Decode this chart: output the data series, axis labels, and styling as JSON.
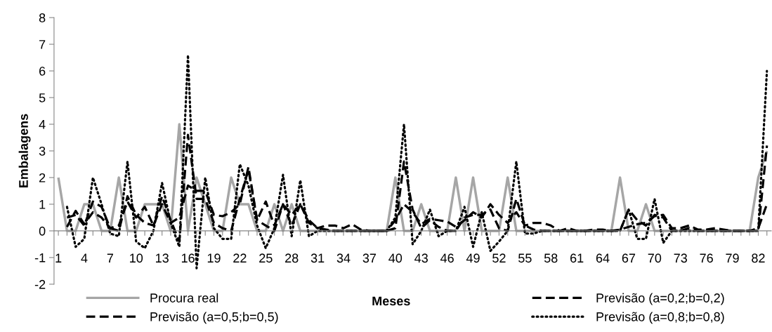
{
  "chart_data": {
    "type": "line",
    "xlabel": "Meses",
    "ylabel": "Embalagens",
    "categories": [
      "1",
      null,
      null,
      "4",
      null,
      null,
      "7",
      null,
      null,
      "10",
      null,
      null,
      "13",
      null,
      null,
      "16",
      null,
      null,
      "19",
      null,
      null,
      "22",
      null,
      null,
      "25",
      null,
      null,
      "28",
      null,
      null,
      "31",
      null,
      null,
      "34",
      null,
      null,
      "37",
      null,
      null,
      "40",
      null,
      null,
      "43",
      null,
      null,
      "46",
      null,
      null,
      "49",
      null,
      null,
      "52",
      null,
      null,
      "55",
      null,
      null,
      "58",
      null,
      null,
      "61",
      null,
      null,
      "64",
      null,
      null,
      "67",
      null,
      null,
      "70",
      null,
      null,
      "73",
      null,
      null,
      "76",
      null,
      null,
      "79",
      null,
      null,
      "82",
      null
    ],
    "ylim": [
      -2,
      8
    ],
    "yticks": [
      -2,
      -1,
      0,
      1,
      2,
      3,
      4,
      5,
      6,
      7,
      8
    ],
    "legend": "bottom",
    "grid": false,
    "series": [
      {
        "name": "Procura real",
        "color": "#a6a6a6",
        "line_style": "solid",
        "values": [
          2,
          0,
          0,
          1,
          1,
          0,
          0,
          2,
          0,
          0,
          1,
          1,
          1,
          0,
          4,
          0,
          2,
          1,
          0,
          0,
          2,
          1,
          1,
          0,
          0,
          1,
          0,
          1,
          0,
          0,
          0,
          0,
          0,
          0,
          0,
          0,
          0,
          0,
          0,
          2,
          0,
          0,
          1,
          0,
          0,
          0,
          2,
          0,
          2,
          0,
          0,
          0,
          2,
          0,
          0,
          0,
          0,
          0,
          0,
          0,
          0,
          0,
          0,
          0,
          0,
          2,
          0,
          0,
          1,
          0,
          0,
          0,
          0,
          0,
          0,
          0,
          0,
          0,
          0,
          0,
          0,
          2,
          3
        ]
      },
      {
        "name": "Previsão (a=0,2;b=0,2)",
        "color": "#000000",
        "line_style": "dashed",
        "values": [
          null,
          0.15,
          0.75,
          0.25,
          0.7,
          0.5,
          0.1,
          0.2,
          1.1,
          0.5,
          0.9,
          0.2,
          1.0,
          0.3,
          0.5,
          1.7,
          1.5,
          1.5,
          0.6,
          0.55,
          0.7,
          1.0,
          2.4,
          0.4,
          1.1,
          0.2,
          1.0,
          0.6,
          1.0,
          0.3,
          0.1,
          0.2,
          0.2,
          0.1,
          0.25,
          0.05,
          0,
          0,
          0,
          0.4,
          1.0,
          0.7,
          0.25,
          0.45,
          0.4,
          0.35,
          0.15,
          0.4,
          0.7,
          0.5,
          1.0,
          0.6,
          0.3,
          0.7,
          0.2,
          0.3,
          0.3,
          0.2,
          0,
          0.1,
          0,
          0,
          0.05,
          0.05,
          0,
          0.05,
          0.15,
          0.25,
          0.3,
          0.55,
          0.6,
          0.1,
          0.1,
          0.2,
          0.05,
          0.05,
          0.1,
          0.05,
          0,
          0,
          0,
          0.1,
          1.0
        ]
      },
      {
        "name": "Previsão (a=0,5;b=0,5)",
        "color": "#000000",
        "line_style": "dashed",
        "values": [
          null,
          0.5,
          0.6,
          0.2,
          1.1,
          0.9,
          0.1,
          0,
          1.3,
          0.6,
          0.3,
          0.2,
          1.3,
          0.4,
          -0.4,
          3.6,
          1.2,
          1.2,
          0.3,
          0.1,
          0,
          1.2,
          2.3,
          0.4,
          0.2,
          0,
          1.0,
          0.2,
          1.0,
          0.4,
          0.1,
          0.05,
          0,
          0,
          0,
          0,
          0,
          0,
          0,
          0.1,
          2.6,
          0.8,
          0.1,
          0.4,
          0.15,
          0,
          0,
          0.5,
          0.6,
          0.6,
          0.8,
          0.1,
          0,
          1.2,
          0.2,
          0.05,
          0,
          0,
          0,
          0,
          0,
          0,
          0,
          0,
          0,
          0,
          0.8,
          0.4,
          0.2,
          0.6,
          0.5,
          0,
          0,
          0.1,
          0,
          0,
          0,
          0,
          0,
          0,
          0,
          0,
          3.2
        ]
      },
      {
        "name": "Previsão (a=0,8;b=0,8)",
        "color": "#000000",
        "line_style": "dotted",
        "values": [
          null,
          0.9,
          -0.6,
          -0.3,
          2.0,
          1.0,
          -0.1,
          -0.2,
          2.6,
          -0.4,
          -0.65,
          0,
          1.8,
          0.3,
          -0.6,
          6.6,
          -1.4,
          2.0,
          0.1,
          -0.3,
          -0.3,
          2.5,
          1.7,
          0.2,
          -0.65,
          0.1,
          2.1,
          -0.2,
          1.9,
          -0.2,
          0,
          0,
          0,
          0,
          0,
          0,
          0,
          0,
          0,
          0.5,
          4.0,
          -0.5,
          0,
          0.8,
          -0.2,
          0,
          0,
          0.9,
          -0.6,
          0.7,
          -0.75,
          -0.4,
          0,
          2.6,
          -0.1,
          -0.1,
          0,
          0,
          0,
          0,
          0,
          0,
          0,
          0,
          0,
          0,
          0.8,
          -0.3,
          -0.3,
          1.2,
          -0.45,
          0,
          0,
          0,
          0,
          0,
          0,
          0,
          0,
          0,
          0,
          0,
          6.0
        ]
      }
    ]
  }
}
